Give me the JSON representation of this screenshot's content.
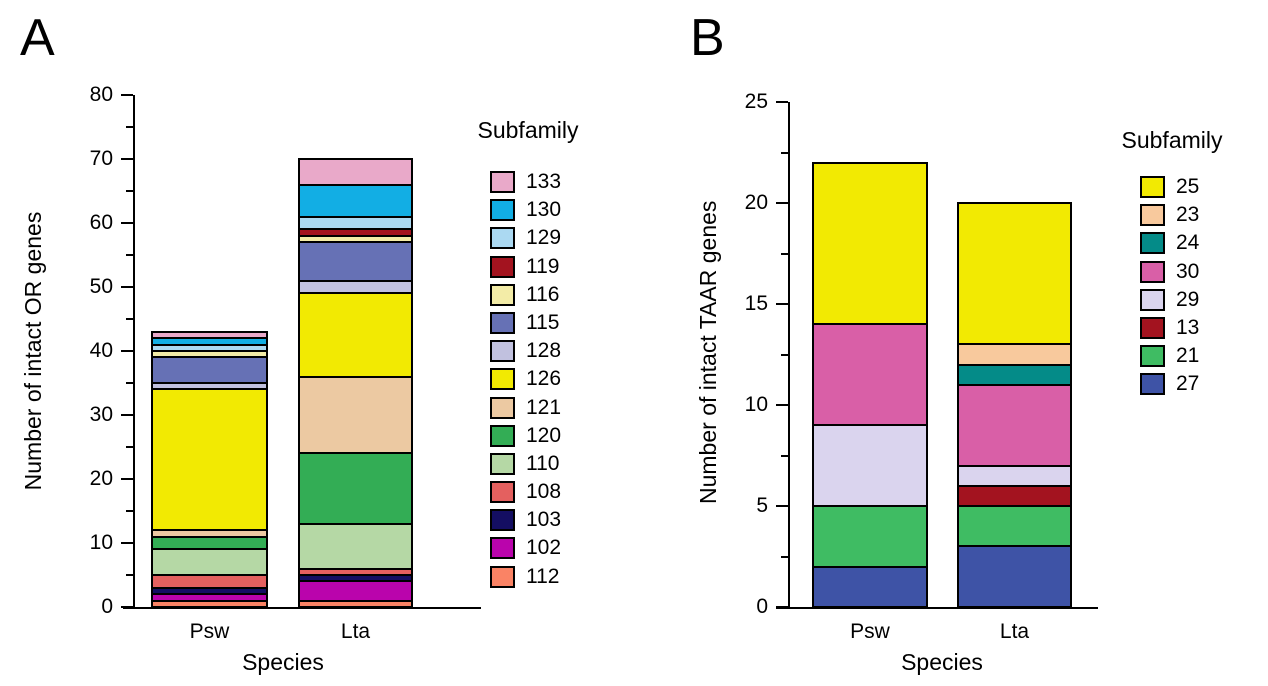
{
  "chart_data": [
    {
      "type": "bar",
      "stacked": true,
      "panel_label": "A",
      "xlabel": "Species",
      "ylabel": "Number of intact OR genes",
      "legend_title": "Subfamily",
      "legend_position": "right",
      "categories": [
        "Psw",
        "Lta"
      ],
      "ylim": [
        0,
        80
      ],
      "ytick_step": 10,
      "yminor_step": 5,
      "grid": false,
      "series": [
        {
          "name": "133",
          "color": "#E9A9C9",
          "values": [
            1,
            4
          ]
        },
        {
          "name": "130",
          "color": "#12AEE4",
          "values": [
            1,
            5
          ]
        },
        {
          "name": "129",
          "color": "#ABD9F2",
          "values": [
            1,
            2
          ]
        },
        {
          "name": "119",
          "color": "#A3131F",
          "values": [
            0,
            1
          ]
        },
        {
          "name": "116",
          "color": "#F3ECA7",
          "values": [
            1,
            1
          ]
        },
        {
          "name": "115",
          "color": "#6671B5",
          "values": [
            4,
            6
          ]
        },
        {
          "name": "128",
          "color": "#C1C1DF",
          "values": [
            1,
            2
          ]
        },
        {
          "name": "126",
          "color": "#F2EA02",
          "values": [
            22,
            13
          ]
        },
        {
          "name": "121",
          "color": "#ECC9A2",
          "values": [
            1,
            12
          ]
        },
        {
          "name": "120",
          "color": "#33AD55",
          "values": [
            2,
            11
          ]
        },
        {
          "name": "110",
          "color": "#B5D8A5",
          "values": [
            4,
            7
          ]
        },
        {
          "name": "108",
          "color": "#E4605F",
          "values": [
            2,
            1
          ]
        },
        {
          "name": "103",
          "color": "#140E62",
          "values": [
            1,
            1
          ]
        },
        {
          "name": "102",
          "color": "#BA04AC",
          "values": [
            1,
            3
          ]
        },
        {
          "name": "112",
          "color": "#FA8365",
          "values": [
            1,
            1
          ]
        }
      ],
      "series_order_note": "series listed in legend order (top to bottom); stacking runs bottom-up in reverse order",
      "totals": [
        43,
        70
      ]
    },
    {
      "type": "bar",
      "stacked": true,
      "panel_label": "B",
      "xlabel": "Species",
      "ylabel": "Number of intact TAAR genes",
      "legend_title": "Subfamily",
      "legend_position": "right",
      "categories": [
        "Psw",
        "Lta"
      ],
      "ylim": [
        0,
        25
      ],
      "ytick_step": 5,
      "yminor_step": 2.5,
      "grid": false,
      "series": [
        {
          "name": "25",
          "color": "#F2EA02",
          "values": [
            8,
            7
          ]
        },
        {
          "name": "23",
          "color": "#F8C99D",
          "values": [
            0,
            1
          ]
        },
        {
          "name": "24",
          "color": "#048B88",
          "values": [
            0,
            1
          ]
        },
        {
          "name": "30",
          "color": "#D95FA7",
          "values": [
            5,
            4
          ]
        },
        {
          "name": "29",
          "color": "#DAD4EE",
          "values": [
            4,
            1
          ]
        },
        {
          "name": "13",
          "color": "#A3131F",
          "values": [
            0,
            1
          ]
        },
        {
          "name": "21",
          "color": "#3FBC63",
          "values": [
            3,
            2
          ]
        },
        {
          "name": "27",
          "color": "#3E53A6",
          "values": [
            2,
            3
          ]
        }
      ],
      "series_order_note": "series listed in legend order (top to bottom); stacking runs bottom-up in reverse order",
      "totals": [
        22,
        20
      ]
    }
  ]
}
